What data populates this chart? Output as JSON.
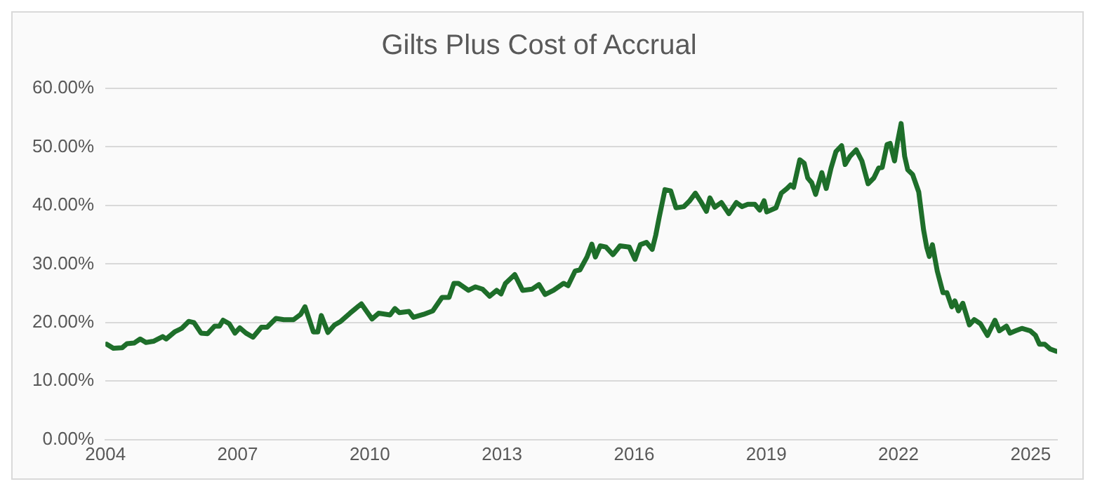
{
  "chart_data": {
    "type": "line",
    "title": "Gilts Plus Cost of Accrual",
    "xlim": [
      2004,
      2025.6
    ],
    "xticks": [
      2004,
      2007,
      2010,
      2013,
      2016,
      2019,
      2022,
      2025
    ],
    "ylim": [
      0,
      60
    ],
    "yticks": [
      {
        "value": 0,
        "label": "0.00%"
      },
      {
        "value": 10,
        "label": "10.00%"
      },
      {
        "value": 20,
        "label": "20.00%"
      },
      {
        "value": 30,
        "label": "30.00%"
      },
      {
        "value": 40,
        "label": "40.00%"
      },
      {
        "value": 50,
        "label": "50.00%"
      },
      {
        "value": 60,
        "label": "60.00%"
      }
    ],
    "grid": "y",
    "legend": false,
    "marker": "none",
    "line_style": "solid",
    "series": [
      {
        "color": "#1e6e2a",
        "x": [
          2004.03,
          2004.18,
          2004.38,
          2004.49,
          2004.65,
          2004.79,
          2004.92,
          2005.09,
          2005.3,
          2005.38,
          2005.57,
          2005.73,
          2005.89,
          2006.01,
          2006.17,
          2006.32,
          2006.48,
          2006.59,
          2006.67,
          2006.81,
          2006.94,
          2007.05,
          2007.19,
          2007.35,
          2007.54,
          2007.67,
          2007.87,
          2008.05,
          2008.27,
          2008.43,
          2008.53,
          2008.72,
          2008.82,
          2008.9,
          2009.05,
          2009.2,
          2009.34,
          2009.55,
          2009.81,
          2010.05,
          2010.2,
          2010.46,
          2010.57,
          2010.67,
          2010.89,
          2010.99,
          2011.22,
          2011.43,
          2011.64,
          2011.8,
          2011.91,
          2012.01,
          2012.24,
          2012.4,
          2012.56,
          2012.72,
          2012.88,
          2012.98,
          2013.08,
          2013.29,
          2013.47,
          2013.68,
          2013.84,
          2013.98,
          2014.17,
          2014.4,
          2014.5,
          2014.66,
          2014.77,
          2014.93,
          2015.04,
          2015.12,
          2015.23,
          2015.36,
          2015.52,
          2015.68,
          2015.89,
          2016.02,
          2016.14,
          2016.28,
          2016.41,
          2016.49,
          2016.57,
          2016.7,
          2016.83,
          2016.95,
          2017.13,
          2017.25,
          2017.39,
          2017.51,
          2017.64,
          2017.72,
          2017.83,
          2017.98,
          2018.15,
          2018.32,
          2018.45,
          2018.58,
          2018.74,
          2018.85,
          2018.95,
          2019.01,
          2019.22,
          2019.34,
          2019.47,
          2019.55,
          2019.62,
          2019.76,
          2019.86,
          2019.94,
          2020.03,
          2020.12,
          2020.26,
          2020.36,
          2020.47,
          2020.58,
          2020.71,
          2020.79,
          2020.9,
          2021.04,
          2021.17,
          2021.31,
          2021.44,
          2021.55,
          2021.63,
          2021.74,
          2021.81,
          2021.91,
          2021.98,
          2022.06,
          2022.14,
          2022.21,
          2022.32,
          2022.46,
          2022.57,
          2022.64,
          2022.7,
          2022.77,
          2022.88,
          2023.01,
          2023.1,
          2023.21,
          2023.28,
          2023.36,
          2023.46,
          2023.61,
          2023.72,
          2023.86,
          2024.02,
          2024.19,
          2024.29,
          2024.45,
          2024.53,
          2024.66,
          2024.8,
          2024.99,
          2025.11,
          2025.2,
          2025.32,
          2025.44,
          2025.58
        ],
        "values": [
          16.3,
          15.6,
          15.7,
          16.4,
          16.5,
          17.2,
          16.6,
          16.8,
          17.6,
          17.2,
          18.4,
          19.0,
          20.2,
          20.0,
          18.2,
          18.1,
          19.4,
          19.4,
          20.4,
          19.8,
          18.2,
          19.1,
          18.2,
          17.5,
          19.2,
          19.2,
          20.7,
          20.5,
          20.5,
          21.4,
          22.7,
          18.4,
          18.4,
          21.2,
          18.3,
          19.6,
          20.2,
          21.6,
          23.2,
          20.6,
          21.6,
          21.3,
          22.4,
          21.7,
          21.9,
          20.9,
          21.4,
          22.0,
          24.3,
          24.3,
          26.7,
          26.7,
          25.5,
          26.1,
          25.7,
          24.5,
          25.5,
          24.9,
          26.7,
          28.2,
          25.5,
          25.7,
          26.5,
          24.8,
          25.5,
          26.7,
          26.3,
          28.8,
          29.0,
          31.2,
          33.4,
          31.2,
          33.1,
          32.9,
          31.6,
          33.1,
          32.9,
          30.8,
          33.3,
          33.7,
          32.5,
          34.9,
          38.0,
          42.7,
          42.5,
          39.6,
          39.8,
          40.7,
          42.1,
          40.7,
          39.0,
          41.3,
          39.7,
          40.5,
          38.6,
          40.5,
          39.8,
          40.2,
          40.2,
          39.2,
          40.8,
          38.9,
          39.6,
          42.1,
          42.9,
          43.5,
          43.1,
          47.8,
          47.2,
          44.7,
          43.9,
          41.9,
          45.6,
          42.9,
          46.4,
          49.2,
          50.2,
          47.0,
          48.4,
          49.5,
          47.6,
          43.7,
          44.7,
          46.4,
          46.5,
          50.4,
          50.6,
          47.6,
          50.9,
          54.0,
          48.4,
          46.1,
          45.3,
          42.3,
          35.8,
          32.9,
          31.3,
          33.3,
          28.8,
          25.1,
          25.1,
          22.7,
          23.7,
          22.0,
          23.3,
          19.6,
          20.5,
          19.8,
          17.8,
          20.4,
          18.6,
          19.4,
          18.2,
          18.6,
          19.0,
          18.6,
          17.8,
          16.3,
          16.3,
          15.5,
          15.1
        ]
      }
    ]
  }
}
